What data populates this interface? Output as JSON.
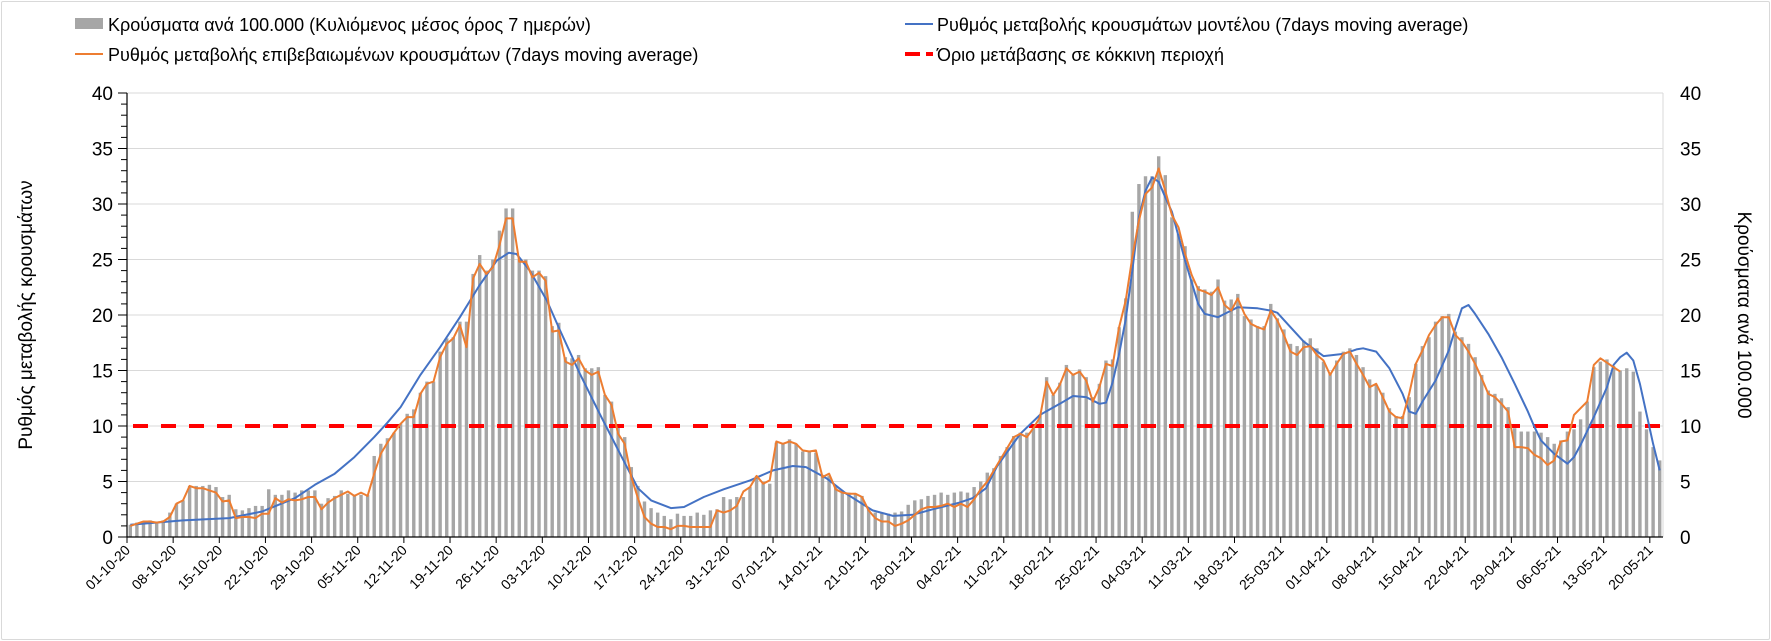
{
  "chart_data": {
    "type": "bar+line",
    "legend": {
      "placement": "top",
      "items": [
        {
          "label": "Κρούσματα ανά 100.000 (Κυλιόμενος μέσος όρος 7 ημερών)",
          "kind": "bar",
          "color": "#a6a6a6"
        },
        {
          "label": "Ρυθμός μεταβολής κρουσμάτων μοντέλου (7days moving average)",
          "kind": "line",
          "color": "#4472c4"
        },
        {
          "label": "Ρυθμός μεταβολής επιβεβαιωμένων κρουσμάτων (7days moving average)",
          "kind": "line",
          "color": "#ed7d31"
        },
        {
          "label": "Όριο μετάβασης σε κόκκινη περιοχή",
          "kind": "dashed",
          "color": "#ff0000"
        }
      ]
    },
    "ylabel_left": "Ρυθμός μεταβολής κρουσμάτων",
    "ylabel_right": "Κρούσματα ανά 100.000",
    "ylim": [
      0,
      40
    ],
    "yticks": [
      "0",
      "5",
      "10",
      "15",
      "20",
      "25",
      "30",
      "35",
      "40"
    ],
    "grid": true,
    "x_start": "01-10-20",
    "x_days": 233,
    "xtick_every_days": 7,
    "xticks": [
      "01-10-20",
      "08-10-20",
      "15-10-20",
      "22-10-20",
      "29-10-20",
      "05-11-20",
      "12-11-20",
      "19-11-20",
      "26-11-20",
      "03-12-20",
      "10-12-20",
      "17-12-20",
      "24-12-20",
      "31-12-20",
      "07-01-21",
      "14-01-21",
      "21-01-21",
      "28-01-21",
      "04-02-21",
      "11-02-21",
      "18-02-21",
      "25-02-21",
      "04-03-21",
      "11-03-21",
      "18-03-21",
      "25-03-21",
      "01-04-21",
      "08-04-21",
      "15-04-21",
      "22-04-21",
      "29-04-21",
      "06-05-21",
      "13-05-21",
      "20-05-21"
    ],
    "threshold": 10,
    "cases_per_100k": [
      1.1,
      1.3,
      1.4,
      1.5,
      1.4,
      1.5,
      2.2,
      3.0,
      3.3,
      4.6,
      4.6,
      4.6,
      4.7,
      4.5,
      3.6,
      3.8,
      2.5,
      2.4,
      2.6,
      2.8,
      2.8,
      4.3,
      3.8,
      3.8,
      4.2,
      4.0,
      4.2,
      4.2,
      4.2,
      3.0,
      3.5,
      3.7,
      4.2,
      3.9,
      3.7,
      3.8,
      3.8,
      7.3,
      8.4,
      8.9,
      9.4,
      10.2,
      11.1,
      11.5,
      13.0,
      14.0,
      14.0,
      16.7,
      17.9,
      18.0,
      19.4,
      19.4,
      23.7,
      25.4,
      24.0,
      25.0,
      27.6,
      29.6,
      29.6,
      25.0,
      25.0,
      24.0,
      24.0,
      23.5,
      19.0,
      19.3,
      16.2,
      16.1,
      16.4,
      15.2,
      15.2,
      15.3,
      12.8,
      12.2,
      9.9,
      9.0,
      6.3,
      4.6,
      3.2,
      2.6,
      2.2,
      1.9,
      1.6,
      2.1,
      1.9,
      1.9,
      2.2,
      2.0,
      2.4,
      2.5,
      3.6,
      3.4,
      3.6,
      3.6,
      4.5,
      5.5,
      5.0,
      4.8,
      8.5,
      8.4,
      8.8,
      8.4,
      7.7,
      7.7,
      7.6,
      5.6,
      5.5,
      4.5,
      4.2,
      4.0,
      3.9,
      3.7,
      2.6,
      2.2,
      2.2,
      2.1,
      2.2,
      2.3,
      2.9,
      3.3,
      3.4,
      3.7,
      3.8,
      4.0,
      3.8,
      4.0,
      4.1,
      4.0,
      4.5,
      5.0,
      5.8,
      6.2,
      7.3,
      8.1,
      9.1,
      9.4,
      9.4,
      9.8,
      11.0,
      14.4,
      12.8,
      13.9,
      15.5,
      14.6,
      15.1,
      14.4,
      12.6,
      13.8,
      15.9,
      16.0,
      18.9,
      21.5,
      29.3,
      31.8,
      32.5,
      32.5,
      34.3,
      32.6,
      28.8,
      27.3,
      26.2,
      23.2,
      22.6,
      22.3,
      22.1,
      23.2,
      21.3,
      21.4,
      21.9,
      19.9,
      19.6,
      19.0,
      19.0,
      21.0,
      19.7,
      18.7,
      17.4,
      17.2,
      17.7,
      17.9,
      17.0,
      15.8,
      14.8,
      15.9,
      16.7,
      17.0,
      16.4,
      15.3,
      14.2,
      13.7,
      13.0,
      11.6,
      10.9,
      10.9,
      12.6,
      15.6,
      17.2,
      18.0,
      19.4,
      19.9,
      20.1,
      18.5,
      18.0,
      17.4,
      16.2,
      14.6,
      13.2,
      12.9,
      12.5,
      11.7,
      9.8,
      9.5,
      9.5,
      9.5,
      9.4,
      9.0,
      8.4,
      8.7,
      9.5,
      9.7,
      10.6,
      12.2,
      15.3,
      15.8,
      16.0,
      15.4,
      15.0,
      15.2,
      14.9,
      11.3,
      9.7,
      8.1,
      6.9
    ],
    "confirmed_rate": [
      1.0,
      1.2,
      1.4,
      1.4,
      1.3,
      1.4,
      1.8,
      3.0,
      3.3,
      4.6,
      4.4,
      4.4,
      4.2,
      4.0,
      3.2,
      3.3,
      1.7,
      1.8,
      1.8,
      1.7,
      2.1,
      2.1,
      3.5,
      3.1,
      3.4,
      3.3,
      3.4,
      3.6,
      3.6,
      2.5,
      3.1,
      3.5,
      3.8,
      4.1,
      3.7,
      4.0,
      3.7,
      5.7,
      7.5,
      8.5,
      9.4,
      10.2,
      10.8,
      10.8,
      12.9,
      13.8,
      14.0,
      16.2,
      17.4,
      17.9,
      19.1,
      17.1,
      23.3,
      24.6,
      23.7,
      24.3,
      26.3,
      28.7,
      28.7,
      24.8,
      24.8,
      23.4,
      23.8,
      23.1,
      18.5,
      18.6,
      15.8,
      15.5,
      16.1,
      15.0,
      14.6,
      14.9,
      12.8,
      11.9,
      9.3,
      8.4,
      5.4,
      3.5,
      1.8,
      1.2,
      0.9,
      0.9,
      0.7,
      1.0,
      1.0,
      0.9,
      0.9,
      0.9,
      0.9,
      2.4,
      2.2,
      2.4,
      2.8,
      4.1,
      4.5,
      5.5,
      4.8,
      5.1,
      8.6,
      8.4,
      8.6,
      8.4,
      7.8,
      7.7,
      7.8,
      5.4,
      5.7,
      4.3,
      4.0,
      3.9,
      3.9,
      3.6,
      2.4,
      1.7,
      1.4,
      1.4,
      1.0,
      1.2,
      1.5,
      2.0,
      2.5,
      2.7,
      2.7,
      2.8,
      3.0,
      2.7,
      3.0,
      2.7,
      3.4,
      4.3,
      5.0,
      6.0,
      7.0,
      8.0,
      9.0,
      9.3,
      9.0,
      9.8,
      10.8,
      14.0,
      12.8,
      13.7,
      15.2,
      14.6,
      14.9,
      14.1,
      12.2,
      13.5,
      15.6,
      15.4,
      18.9,
      21.3,
      25.2,
      28.5,
      30.9,
      31.5,
      33.2,
      31.2,
      29.0,
      27.9,
      25.5,
      23.6,
      22.3,
      22.1,
      21.8,
      22.5,
      20.9,
      20.4,
      21.5,
      20.1,
      19.2,
      18.9,
      18.7,
      20.4,
      19.5,
      18.2,
      16.7,
      16.4,
      17.1,
      17.2,
      16.4,
      15.9,
      14.6,
      15.6,
      16.5,
      16.7,
      15.6,
      14.6,
      13.5,
      13.8,
      12.6,
      11.3,
      10.8,
      10.7,
      12.9,
      15.6,
      16.8,
      18.2,
      19.1,
      19.8,
      19.8,
      18.2,
      17.6,
      16.7,
      15.6,
      14.3,
      12.9,
      12.6,
      12.0,
      11.3,
      8.1,
      8.1,
      8.0,
      7.4,
      7.1,
      6.5,
      6.9,
      8.6,
      8.7,
      11.0,
      11.6,
      12.2,
      15.5,
      16.1,
      15.7,
      15.3,
      14.9
    ],
    "model_rate_points": [
      [
        0,
        1.1
      ],
      [
        8,
        1.5
      ],
      [
        15,
        1.7
      ],
      [
        20,
        2.3
      ],
      [
        25,
        3.5
      ],
      [
        28,
        4.7
      ],
      [
        31,
        5.7
      ],
      [
        34,
        7.2
      ],
      [
        37,
        9.0
      ],
      [
        39,
        10.3
      ],
      [
        41,
        11.7
      ],
      [
        44,
        14.6
      ],
      [
        47,
        17.1
      ],
      [
        50,
        19.8
      ],
      [
        53,
        22.7
      ],
      [
        55.6,
        24.9
      ],
      [
        57.4,
        25.6
      ],
      [
        58.6,
        25.5
      ],
      [
        60.6,
        24.0
      ],
      [
        63.2,
        21.3
      ],
      [
        65.2,
        18.6
      ],
      [
        68.2,
        14.7
      ],
      [
        71.2,
        11.1
      ],
      [
        74.3,
        7.5
      ],
      [
        77,
        4.4
      ],
      [
        79,
        3.3
      ],
      [
        82,
        2.6
      ],
      [
        84,
        2.7
      ],
      [
        87,
        3.6
      ],
      [
        90,
        4.3
      ],
      [
        94,
        5.1
      ],
      [
        97.5,
        6.0
      ],
      [
        100.5,
        6.4
      ],
      [
        102.5,
        6.3
      ],
      [
        105.6,
        5.3
      ],
      [
        108.6,
        3.9
      ],
      [
        112.6,
        2.4
      ],
      [
        115.7,
        1.9
      ],
      [
        118.7,
        2.0
      ],
      [
        121.7,
        2.5
      ],
      [
        125.8,
        3.1
      ],
      [
        127.8,
        3.5
      ],
      [
        129.8,
        4.4
      ],
      [
        131.5,
        6.4
      ],
      [
        135,
        9.3
      ],
      [
        138,
        11.0
      ],
      [
        141,
        12.0
      ],
      [
        143,
        12.7
      ],
      [
        145,
        12.6
      ],
      [
        147,
        12.0
      ],
      [
        148,
        12.1
      ],
      [
        149,
        13.9
      ],
      [
        150,
        16.5
      ],
      [
        151,
        19.6
      ],
      [
        152,
        24.0
      ],
      [
        153,
        28.8
      ],
      [
        154,
        31.2
      ],
      [
        155,
        32.4
      ],
      [
        156,
        32.0
      ],
      [
        157,
        30.6
      ],
      [
        158,
        29.3
      ],
      [
        160,
        24.9
      ],
      [
        162,
        21.0
      ],
      [
        163,
        20.1
      ],
      [
        165,
        19.8
      ],
      [
        166,
        20.1
      ],
      [
        168,
        20.7
      ],
      [
        171,
        20.6
      ],
      [
        173,
        20.4
      ],
      [
        174,
        20.2
      ],
      [
        176,
        18.9
      ],
      [
        178,
        17.6
      ],
      [
        181,
        16.3
      ],
      [
        184,
        16.5
      ],
      [
        186,
        16.9
      ],
      [
        187,
        17.0
      ],
      [
        189,
        16.7
      ],
      [
        191,
        15.2
      ],
      [
        193,
        12.9
      ],
      [
        194,
        11.3
      ],
      [
        195,
        11.1
      ],
      [
        196,
        12.2
      ],
      [
        198,
        14.1
      ],
      [
        200,
        16.8
      ],
      [
        201,
        18.8
      ],
      [
        202,
        20.6
      ],
      [
        203,
        20.9
      ],
      [
        204,
        20.1
      ],
      [
        206,
        18.3
      ],
      [
        208,
        16.2
      ],
      [
        210,
        13.8
      ],
      [
        212,
        11.3
      ],
      [
        213,
        9.9
      ],
      [
        214,
        8.7
      ],
      [
        216,
        7.5
      ],
      [
        218,
        6.6
      ],
      [
        219,
        7.2
      ],
      [
        220,
        8.3
      ],
      [
        222,
        10.8
      ],
      [
        224,
        13.5
      ],
      [
        225,
        15.5
      ],
      [
        226,
        16.2
      ],
      [
        227,
        16.6
      ],
      [
        228,
        15.9
      ],
      [
        229,
        13.8
      ],
      [
        230,
        11.1
      ],
      [
        231,
        8.4
      ],
      [
        232,
        6.0
      ]
    ]
  }
}
